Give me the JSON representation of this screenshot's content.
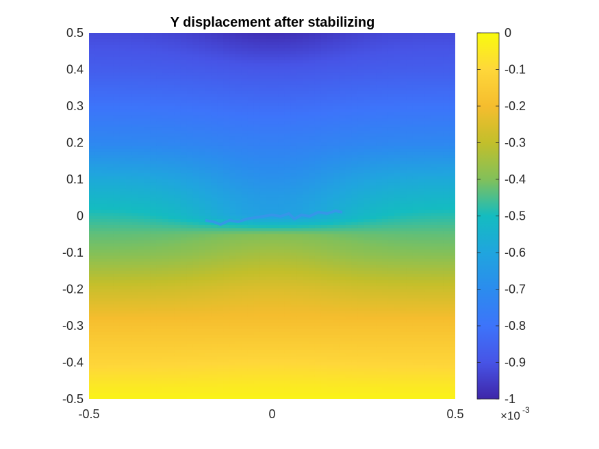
{
  "chart_data": {
    "type": "heatmap",
    "title": "Y displacement after stabilizing",
    "xlabel": "",
    "ylabel": "",
    "xlim": [
      -0.5,
      0.5
    ],
    "ylim": [
      -0.5,
      0.5
    ],
    "xticks": [
      -0.5,
      0,
      0.5
    ],
    "xtick_labels": [
      "-0.5",
      "0",
      "0.5"
    ],
    "yticks": [
      0.5,
      0.4,
      0.3,
      0.2,
      0.1,
      0,
      -0.1,
      -0.2,
      -0.3,
      -0.4,
      -0.5
    ],
    "ytick_labels": [
      "0.5",
      "0.4",
      "0.3",
      "0.2",
      "0.1",
      "0",
      "-0.1",
      "-0.2",
      "-0.3",
      "-0.4",
      "-0.5"
    ],
    "colormap": "parula",
    "colorbar": {
      "clim": [
        -1,
        0
      ],
      "ticks": [
        0,
        -0.1,
        -0.2,
        -0.3,
        -0.4,
        -0.5,
        -0.6,
        -0.7,
        -0.8,
        -0.9,
        -1
      ],
      "tick_labels": [
        "0",
        "-0.1",
        "-0.2",
        "-0.3",
        "-0.4",
        "-0.5",
        "-0.6",
        "-0.7",
        "-0.8",
        "-0.9",
        "-1"
      ],
      "exponent_base": "×10",
      "exponent_power": "-3"
    },
    "field_profile": {
      "y": [
        0.5,
        0.4,
        0.3,
        0.2,
        0.1,
        0.05,
        0.0,
        -0.05,
        -0.1,
        -0.2,
        -0.3,
        -0.4,
        -0.5
      ],
      "value_center": [
        -0.98,
        -0.89,
        -0.82,
        -0.75,
        -0.68,
        -0.64,
        -0.62,
        -0.4,
        -0.35,
        -0.25,
        -0.18,
        -0.1,
        -0.02
      ],
      "value_edge": [
        -0.92,
        -0.87,
        -0.8,
        -0.72,
        -0.58,
        -0.53,
        -0.48,
        -0.43,
        -0.4,
        -0.28,
        -0.18,
        -0.11,
        -0.02
      ]
    },
    "grid": false
  }
}
